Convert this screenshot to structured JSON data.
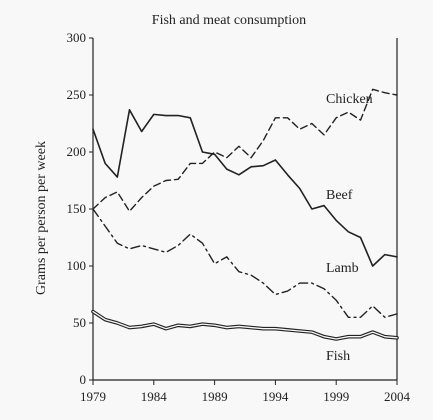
{
  "chart_data": {
    "type": "line",
    "title": "Fish and meat consumption",
    "xlabel": "",
    "ylabel": "Grams per person per week",
    "xlim": [
      1979,
      2004
    ],
    "ylim": [
      0,
      300
    ],
    "x_ticks": [
      1979,
      1984,
      1989,
      1994,
      1999,
      2004
    ],
    "y_ticks": [
      0,
      50,
      100,
      150,
      200,
      250,
      300
    ],
    "x_tick_labels": [
      "1979",
      "1984",
      "1989",
      "1994",
      "1999",
      "2004"
    ],
    "y_tick_labels": [
      "0",
      "50",
      "100",
      "150",
      "200",
      "250",
      "300"
    ],
    "grid": false,
    "legend": "inline labels",
    "series": [
      {
        "name": "Chicken",
        "style": "dashed",
        "x": [
          1979,
          1980,
          1981,
          1982,
          1983,
          1984,
          1985,
          1986,
          1987,
          1988,
          1989,
          1990,
          1991,
          1992,
          1993,
          1994,
          1995,
          1996,
          1997,
          1998,
          1999,
          2000,
          2001,
          2002,
          2003,
          2004
        ],
        "values": [
          150,
          160,
          165,
          148,
          160,
          170,
          175,
          176,
          190,
          190,
          200,
          195,
          205,
          195,
          210,
          230,
          230,
          220,
          225,
          215,
          230,
          235,
          228,
          255,
          252,
          250
        ]
      },
      {
        "name": "Beef",
        "style": "solid",
        "x": [
          1979,
          1980,
          1981,
          1982,
          1983,
          1984,
          1985,
          1986,
          1987,
          1988,
          1989,
          1990,
          1991,
          1992,
          1993,
          1994,
          1995,
          1996,
          1997,
          1998,
          1999,
          2000,
          2001,
          2002,
          2003,
          2004
        ],
        "values": [
          220,
          190,
          178,
          237,
          218,
          233,
          232,
          232,
          230,
          200,
          198,
          185,
          180,
          187,
          188,
          193,
          180,
          168,
          150,
          153,
          140,
          130,
          125,
          100,
          110,
          108
        ]
      },
      {
        "name": "Lamb",
        "style": "dash-dot",
        "x": [
          1979,
          1980,
          1981,
          1982,
          1983,
          1984,
          1985,
          1986,
          1987,
          1988,
          1989,
          1990,
          1991,
          1992,
          1993,
          1994,
          1995,
          1996,
          1997,
          1998,
          1999,
          2000,
          2001,
          2002,
          2003,
          2004
        ],
        "values": [
          150,
          135,
          120,
          115,
          118,
          115,
          112,
          118,
          128,
          120,
          102,
          108,
          95,
          92,
          85,
          75,
          78,
          85,
          85,
          80,
          70,
          55,
          55,
          65,
          55,
          58
        ]
      },
      {
        "name": "Fish",
        "style": "double",
        "x": [
          1979,
          1980,
          1981,
          1982,
          1983,
          1984,
          1985,
          1986,
          1987,
          1988,
          1989,
          1990,
          1991,
          1992,
          1993,
          1994,
          1995,
          1996,
          1997,
          1998,
          1999,
          2000,
          2001,
          2002,
          2003,
          2004
        ],
        "values": [
          60,
          53,
          50,
          46,
          47,
          49,
          45,
          48,
          47,
          49,
          48,
          46,
          47,
          46,
          45,
          45,
          44,
          43,
          42,
          38,
          36,
          38,
          38,
          42,
          38,
          37
        ]
      }
    ]
  }
}
